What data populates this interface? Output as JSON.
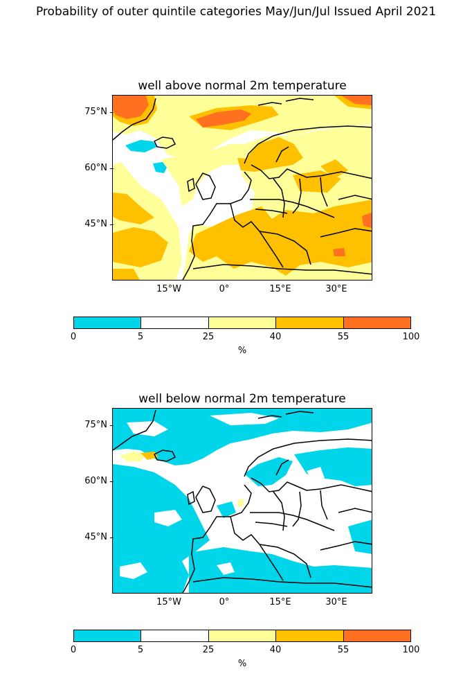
{
  "title": "Probability of outer quintile categories May/Jun/Jul Issued April 2021",
  "panels": [
    {
      "title": "well above normal 2m temperature"
    },
    {
      "title": "well below normal 2m temperature"
    }
  ],
  "axes": {
    "lat_labels": [
      "75°N",
      "60°N",
      "45°N"
    ],
    "lon_labels": [
      "15°W",
      "0°",
      "15°E",
      "30°E"
    ]
  },
  "colorbar": {
    "ticks": [
      "0",
      "5",
      "25",
      "40",
      "55",
      "100"
    ],
    "colors": [
      "#00d5ea",
      "#ffffff",
      "#ffff99",
      "#ffc000",
      "#ff7020"
    ],
    "unit": "%"
  }
}
